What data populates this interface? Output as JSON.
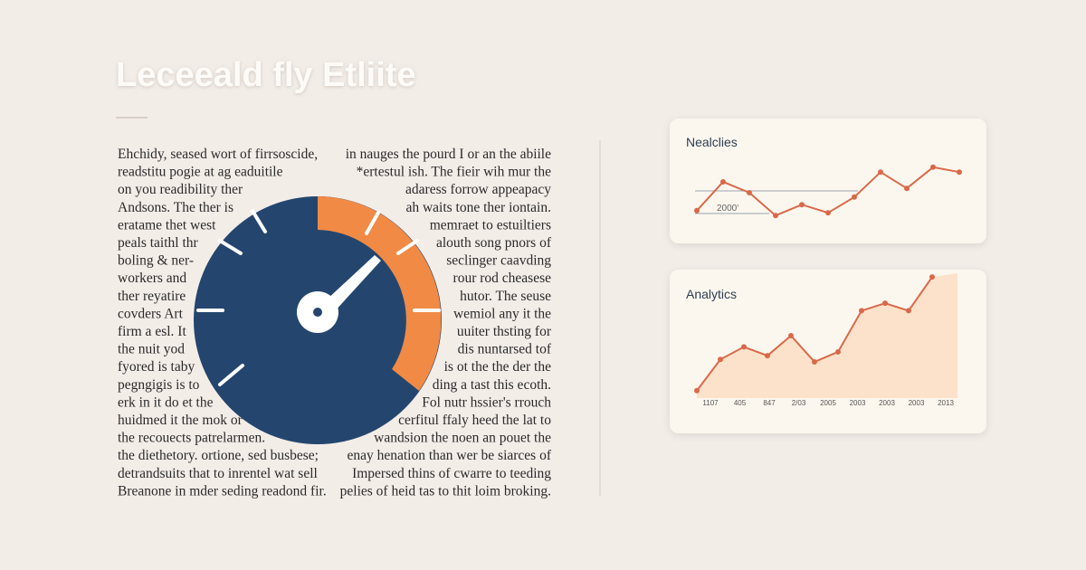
{
  "header": {
    "title": "Leceeald fly Etliite"
  },
  "article": {
    "left_lines": [
      "Ehchidy, seased wort of firrsoscide,",
      "readstitu pogie at ag eaduitile",
      "on you readibility ther",
      "Andsons. The ther is",
      "eratame thet west",
      "peals taithl thr",
      "boling & ner-",
      "workers and",
      "ther reyatire",
      "covders Art",
      "firm a esl. It",
      "the nuit yod",
      "fyored is taby",
      "pegngigis is to",
      "erk in it do et the",
      "huidmed it the mok or",
      "the recouects patrelarmen.",
      "the diethetory. ortione, sed busbese;",
      "detrandsuits that to inrentel wat sell",
      "Breanone in mder seding readond fir."
    ],
    "right_lines": [
      "in nauges the pourd I or an the abiile",
      "*ertestul ish. The fieir wih mur the",
      "adaress forrow appeapacy",
      "ah waits tone ther iontain.",
      "memraet to estuiltiers",
      "alouth song pnors of",
      "seclinger caavding",
      "rour rod cheasese",
      "hutor. The seuse",
      "wemiol any it the",
      "uuiter thsting for",
      "dis nuntarsed tof",
      "is ot the the der the",
      "ding a tast this ecoth.",
      "Fol nutr hssier's rrouch",
      "cerfitul ffaly heed the lat to",
      "wandsion the noen an pouet the",
      "enay henation than wer be siarces of",
      "Impersed thins of cwarre to teeding",
      "pelies of heid tas to thit loim broking."
    ]
  },
  "cards": [
    {
      "title": "Nealclies",
      "label": "2000'",
      "chart_data": {
        "type": "line",
        "values": [
          12,
          65,
          45,
          3,
          23,
          8,
          37,
          83,
          53,
          92,
          83
        ],
        "ylim": [
          0,
          100
        ],
        "color": "#d9694a"
      }
    },
    {
      "title": "Analytics",
      "chart_data": {
        "type": "area",
        "values": [
          6,
          31,
          41,
          34,
          50,
          29,
          37,
          70,
          76,
          70,
          97
        ],
        "x_labels": [
          "1107",
          "405",
          "847",
          "2/03",
          "2005",
          "2003",
          "2003",
          "2003",
          "2013"
        ],
        "ylim": [
          0,
          100
        ],
        "color": "#d9694a",
        "fill": "#fbdcc0"
      }
    }
  ]
}
